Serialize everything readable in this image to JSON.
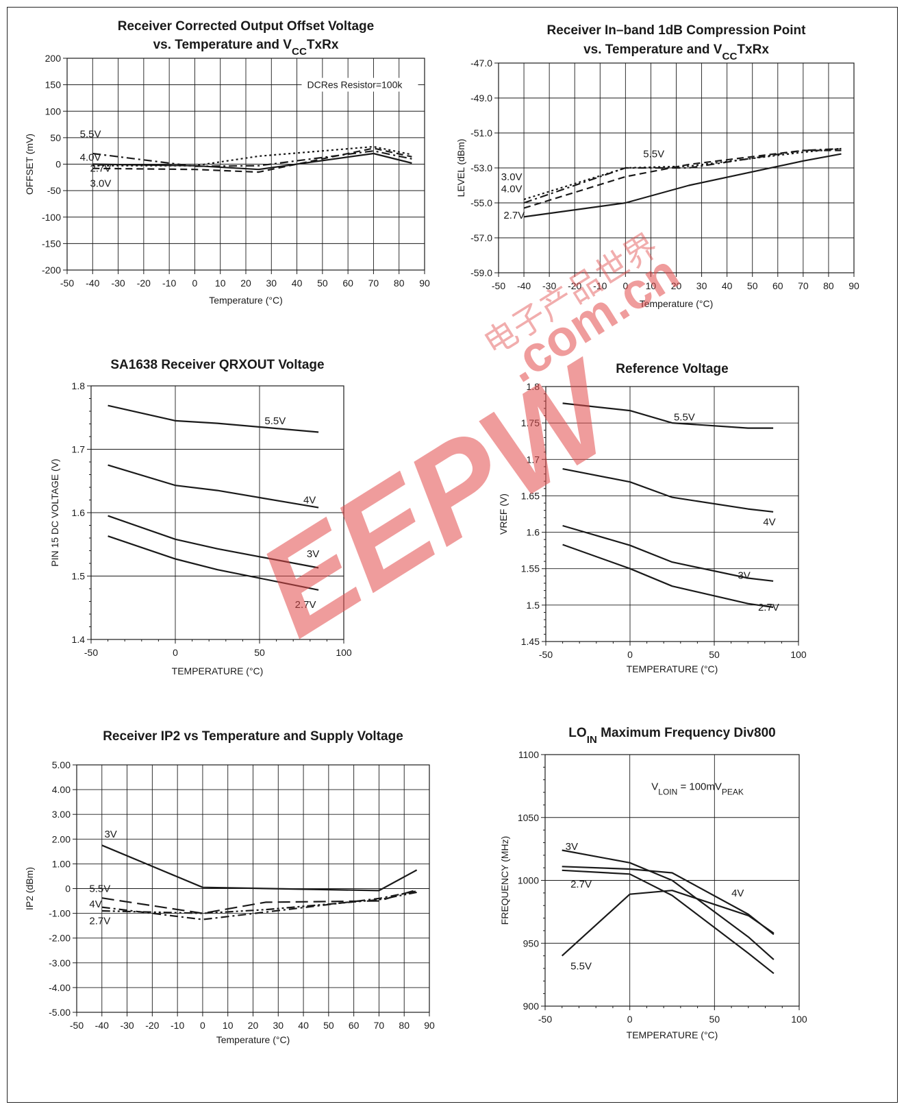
{
  "colors": {
    "ink": "#1a1a1a",
    "grid": "#1a1a1a",
    "watermark": "#e14a4a"
  },
  "watermark": {
    "text_main": "EEPW",
    "text_cn": "电子产品世界",
    "text_url": ".com.cn"
  },
  "chart_data": [
    {
      "id": "c1",
      "type": "line",
      "title_parts": [
        {
          "t": "Receiver Corrected Output Offset Voltage"
        }
      ],
      "title2_parts": [
        {
          "t": "vs. Temperature and V"
        },
        {
          "t": "CC",
          "sub": true
        },
        {
          "t": "TxRx"
        }
      ],
      "xlabel": "Temperature (°C)",
      "ylabel": "OFFSET (mV)",
      "xlim": [
        -50,
        90
      ],
      "ylim": [
        -200,
        200
      ],
      "xticks": [
        -50,
        -40,
        -30,
        -20,
        -10,
        0,
        10,
        20,
        30,
        40,
        50,
        60,
        70,
        80,
        90
      ],
      "yticks": [
        -200,
        -150,
        -100,
        -50,
        0,
        50,
        100,
        150,
        200
      ],
      "grid": true,
      "annotation": "DCRes Resistor=100k",
      "series": [
        {
          "name": "5.5V",
          "dash": "solid",
          "x": [
            -40,
            0,
            25,
            70,
            85
          ],
          "y": [
            0,
            -3,
            -10,
            20,
            2
          ]
        },
        {
          "name": "4.0V",
          "dash": "dashdot",
          "x": [
            -40,
            0,
            25,
            70,
            85
          ],
          "y": [
            20,
            -4,
            -3,
            25,
            10
          ]
        },
        {
          "name": "2.7V",
          "dash": "dotted",
          "x": [
            -40,
            0,
            25,
            70,
            85
          ],
          "y": [
            -3,
            -3,
            15,
            33,
            18
          ]
        },
        {
          "name": "3.0V",
          "dash": "dashed",
          "x": [
            -40,
            0,
            25,
            70,
            85
          ],
          "y": [
            -8,
            -10,
            -15,
            30,
            14
          ]
        }
      ],
      "labels": [
        {
          "text": "5.5V",
          "x": -45,
          "y": 57
        },
        {
          "text": "4.0V",
          "x": -45,
          "y": 13
        },
        {
          "text": "2.7V",
          "x": -41,
          "y": -8
        },
        {
          "text": "3.0V",
          "x": -41,
          "y": -36
        }
      ]
    },
    {
      "id": "c2",
      "type": "line",
      "title_parts": [
        {
          "t": "Receiver In–band 1dB Compression Point"
        }
      ],
      "title2_parts": [
        {
          "t": "vs. Temperature and V"
        },
        {
          "t": "CC",
          "sub": true
        },
        {
          "t": "TxRx"
        }
      ],
      "xlabel": "Temperature (°C)",
      "ylabel": "LEVEL (dBm)",
      "xlim": [
        -50,
        90
      ],
      "ylim": [
        -59.0,
        -47.0
      ],
      "xticks": [
        -50,
        -40,
        -30,
        -20,
        -10,
        0,
        10,
        20,
        30,
        40,
        50,
        60,
        70,
        80,
        90
      ],
      "yticks": [
        -59.0,
        -57.0,
        -55.0,
        -53.0,
        -51.0,
        -49.0,
        -47.0
      ],
      "ytick_labels": [
        "-59.0",
        "-57.0",
        "-55.0",
        "-53.0",
        "-51.0",
        "-49.0",
        "-47.0"
      ],
      "grid": true,
      "series": [
        {
          "name": "2.7V",
          "dash": "solid",
          "x": [
            -40,
            0,
            25,
            70,
            85
          ],
          "y": [
            -55.8,
            -55.0,
            -54.0,
            -52.6,
            -52.2
          ]
        },
        {
          "name": "3.0V",
          "dash": "dashed",
          "x": [
            -40,
            0,
            25,
            70,
            85
          ],
          "y": [
            -55.3,
            -53.5,
            -52.8,
            -52.0,
            -52.0
          ]
        },
        {
          "name": "4.0V",
          "dash": "dashdot",
          "x": [
            -40,
            0,
            25,
            70,
            85
          ],
          "y": [
            -55.0,
            -53.0,
            -53.0,
            -52.0,
            -51.9
          ]
        },
        {
          "name": "5.5V",
          "dash": "dotted",
          "x": [
            -40,
            0,
            25,
            70,
            85
          ],
          "y": [
            -54.8,
            -53.0,
            -52.9,
            -52.1,
            -51.9
          ]
        }
      ],
      "labels": [
        {
          "text": "5.5V",
          "x": 7,
          "y": -52.2
        },
        {
          "text": "3.0V",
          "x": -49,
          "y": -53.5
        },
        {
          "text": "4.0V",
          "x": -49,
          "y": -54.2
        },
        {
          "text": "2.7V",
          "x": -48,
          "y": -55.7
        }
      ]
    },
    {
      "id": "c3",
      "type": "line",
      "title_parts": [
        {
          "t": "SA1638 Receiver QRXOUT Voltage"
        }
      ],
      "xlabel": "TEMPERATURE (°C)",
      "ylabel": "PIN 15 DC VOLTAGE (V)",
      "xlim": [
        -50,
        100
      ],
      "ylim": [
        1.4,
        1.8
      ],
      "xticks": [
        -50,
        0,
        50,
        100
      ],
      "yticks": [
        1.4,
        1.5,
        1.6,
        1.7,
        1.8
      ],
      "ytick_labels": [
        "1.4",
        "1.5",
        "1.6",
        "1.7",
        "1.8"
      ],
      "minor_xticks": 5,
      "minor_yticks": 5,
      "grid": true,
      "series": [
        {
          "name": "5.5V",
          "dash": "solid",
          "x": [
            -40,
            0,
            25,
            85
          ],
          "y": [
            1.769,
            1.745,
            1.741,
            1.727
          ]
        },
        {
          "name": "4V",
          "dash": "solid",
          "x": [
            -40,
            0,
            25,
            85
          ],
          "y": [
            1.675,
            1.643,
            1.635,
            1.608
          ]
        },
        {
          "name": "3V",
          "dash": "solid",
          "x": [
            -40,
            0,
            25,
            85
          ],
          "y": [
            1.595,
            1.558,
            1.543,
            1.513
          ]
        },
        {
          "name": "2.7V",
          "dash": "solid",
          "x": [
            -40,
            0,
            25,
            85
          ],
          "y": [
            1.563,
            1.527,
            1.51,
            1.478
          ]
        }
      ],
      "labels": [
        {
          "text": "5.5V",
          "x": 53,
          "y": 1.745
        },
        {
          "text": "4V",
          "x": 76,
          "y": 1.62
        },
        {
          "text": "3V",
          "x": 78,
          "y": 1.535
        },
        {
          "text": "2.7V",
          "x": 71,
          "y": 1.455
        }
      ]
    },
    {
      "id": "c4",
      "type": "line",
      "title_parts": [
        {
          "t": "Reference Voltage"
        }
      ],
      "xlabel": "TEMPERATURE (°C)",
      "ylabel": "VREF (V)",
      "xlim": [
        -50,
        100
      ],
      "ylim": [
        1.45,
        1.8
      ],
      "xticks": [
        -50,
        0,
        50,
        100
      ],
      "yticks": [
        1.45,
        1.5,
        1.55,
        1.6,
        1.65,
        1.7,
        1.75,
        1.8
      ],
      "ytick_labels": [
        "1.45",
        "1.5",
        "1.55",
        "1.6",
        "1.65",
        "1.7",
        "1.75",
        "1.8"
      ],
      "minor_xticks": 5,
      "minor_yticks": 5,
      "grid": true,
      "series": [
        {
          "name": "5.5V",
          "dash": "solid",
          "x": [
            -40,
            0,
            25,
            70,
            85
          ],
          "y": [
            1.777,
            1.767,
            1.75,
            1.743,
            1.743
          ]
        },
        {
          "name": "4V",
          "dash": "solid",
          "x": [
            -40,
            0,
            25,
            70,
            85
          ],
          "y": [
            1.687,
            1.669,
            1.648,
            1.632,
            1.628
          ]
        },
        {
          "name": "3V",
          "dash": "solid",
          "x": [
            -40,
            0,
            25,
            70,
            85
          ],
          "y": [
            1.609,
            1.582,
            1.559,
            1.537,
            1.533
          ]
        },
        {
          "name": "2.7V",
          "dash": "solid",
          "x": [
            -40,
            0,
            25,
            70,
            85
          ],
          "y": [
            1.583,
            1.55,
            1.526,
            1.502,
            1.497
          ]
        }
      ],
      "labels": [
        {
          "text": "5.5V",
          "x": 26,
          "y": 1.758
        },
        {
          "text": "4V",
          "x": 79,
          "y": 1.614
        },
        {
          "text": "3V",
          "x": 64,
          "y": 1.541
        },
        {
          "text": "2.7V",
          "x": 76,
          "y": 1.497
        }
      ]
    },
    {
      "id": "c5",
      "type": "line",
      "title_parts": [
        {
          "t": "Receiver IP2  vs Temperature and Supply Voltage"
        }
      ],
      "xlabel": "Temperature (°C)",
      "ylabel": "IP2 (dBm)",
      "xlim": [
        -50,
        90
      ],
      "ylim": [
        -5.0,
        5.0
      ],
      "xticks": [
        -50,
        -40,
        -30,
        -20,
        -10,
        0,
        10,
        20,
        30,
        40,
        50,
        60,
        70,
        80,
        90
      ],
      "yticks": [
        -5.0,
        -4.0,
        -3.0,
        -2.0,
        -1.0,
        0,
        1.0,
        2.0,
        3.0,
        4.0,
        5.0
      ],
      "ytick_labels": [
        "-5.00",
        "-4.00",
        "-3.00",
        "-2.00",
        "-1.00",
        "0",
        "1.00",
        "2.00",
        "3.00",
        "4.00",
        "5.00"
      ],
      "grid": true,
      "series": [
        {
          "name": "3V",
          "dash": "solid",
          "x": [
            -40,
            0,
            70,
            85
          ],
          "y": [
            1.75,
            0.05,
            -0.08,
            0.75
          ]
        },
        {
          "name": "5.5V",
          "dash": "longdash",
          "x": [
            -40,
            0,
            25,
            70,
            85
          ],
          "y": [
            -0.38,
            -1.0,
            -0.55,
            -0.5,
            -0.05
          ]
        },
        {
          "name": "4V",
          "dash": "dashdot",
          "x": [
            -40,
            0,
            25,
            70,
            85
          ],
          "y": [
            -0.75,
            -1.25,
            -0.95,
            -0.4,
            -0.1
          ]
        },
        {
          "name": "2.7V",
          "dash": "dashdotdot",
          "x": [
            -40,
            0,
            25,
            70,
            85
          ],
          "y": [
            -0.9,
            -1.0,
            -0.85,
            -0.45,
            -0.15
          ]
        }
      ],
      "labels": [
        {
          "text": "3V",
          "x": -39,
          "y": 2.2
        },
        {
          "text": "5.5V",
          "x": -45,
          "y": 0
        },
        {
          "text": "4V",
          "x": -45,
          "y": -0.63
        },
        {
          "text": "2.7V",
          "x": -45,
          "y": -1.3
        }
      ]
    },
    {
      "id": "c6",
      "type": "line",
      "title_parts": [
        {
          "t": "LO"
        },
        {
          "t": "IN",
          "sub": true
        },
        {
          "t": " Maximum Frequency Div800"
        }
      ],
      "xlabel": "TEMPERATURE (°C)",
      "ylabel": "FREQUENCY (MHz)",
      "xlim": [
        -50,
        100
      ],
      "ylim": [
        900,
        1100
      ],
      "xticks": [
        -50,
        0,
        50,
        100
      ],
      "yticks": [
        900,
        950,
        1000,
        1050,
        1100
      ],
      "minor_xticks": 5,
      "minor_yticks": 5,
      "grid": true,
      "annotation_parts": [
        {
          "t": "V"
        },
        {
          "t": "LOIN",
          "sub": true
        },
        {
          "t": " = 100mV"
        },
        {
          "t": "PEAK",
          "sub": true
        }
      ],
      "series": [
        {
          "name": "3V",
          "dash": "solid",
          "x": [
            -40,
            0,
            25,
            70,
            85
          ],
          "y": [
            1024,
            1014,
            1000,
            955,
            937
          ]
        },
        {
          "name": "2.7V",
          "dash": "solid",
          "x": [
            -40,
            0,
            25,
            70,
            85
          ],
          "y": [
            1011,
            1009,
            1006,
            973,
            957
          ]
        },
        {
          "name": "4V",
          "dash": "solid",
          "x": [
            -40,
            0,
            25,
            70,
            85
          ],
          "y": [
            1008,
            1005,
            988,
            942,
            926
          ]
        },
        {
          "name": "5.5V",
          "dash": "solid",
          "x": [
            -40,
            0,
            25,
            70,
            85
          ],
          "y": [
            940,
            989,
            992,
            972,
            958
          ]
        }
      ],
      "labels": [
        {
          "text": "3V",
          "x": -38,
          "y": 1027
        },
        {
          "text": "2.7V",
          "x": -35,
          "y": 997
        },
        {
          "text": "4V",
          "x": 60,
          "y": 990
        },
        {
          "text": "5.5V",
          "x": -35,
          "y": 932
        }
      ]
    }
  ]
}
